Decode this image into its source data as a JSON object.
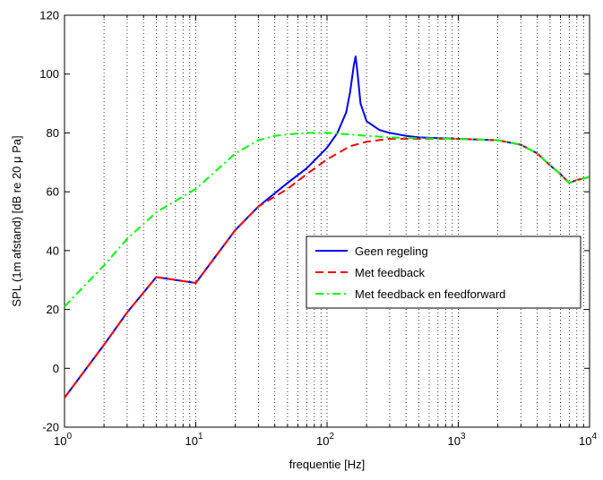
{
  "chart_data": {
    "type": "line",
    "xlabel": "frequentie [Hz]",
    "ylabel": "SPL (1m afstand) [dB re 20 μ Pa]",
    "xscale": "log",
    "xlim": [
      1,
      10000
    ],
    "ylim": [
      -20,
      120
    ],
    "grid": "x-only dotted (log minor)",
    "legend_position": "right-middle",
    "x_ticks": [
      {
        "base": "10",
        "exp": "0"
      },
      {
        "base": "10",
        "exp": "1"
      },
      {
        "base": "10",
        "exp": "2"
      },
      {
        "base": "10",
        "exp": "3"
      },
      {
        "base": "10",
        "exp": "4"
      }
    ],
    "y_ticks": [
      "-20",
      "0",
      "20",
      "40",
      "60",
      "80",
      "100",
      "120"
    ],
    "series": [
      {
        "name": "Geen regeling",
        "color": "#0000ff",
        "style": "solid",
        "x": [
          1,
          2,
          3,
          5,
          10,
          20,
          30,
          50,
          70,
          100,
          120,
          140,
          150,
          160,
          165,
          170,
          180,
          200,
          250,
          300,
          400,
          500,
          700,
          1000,
          2000,
          3000,
          4000,
          5000,
          6000,
          7000,
          8000,
          10000
        ],
        "y": [
          -10,
          8,
          19,
          31,
          29,
          47,
          55,
          63,
          68,
          75,
          80,
          87,
          94,
          103,
          106,
          101,
          90,
          84,
          81,
          80,
          79,
          78.5,
          78.2,
          78,
          77.5,
          76,
          73,
          69,
          66,
          63,
          64,
          65
        ]
      },
      {
        "name": "Met feedback",
        "color": "#ff0000",
        "style": "dashed",
        "x": [
          1,
          2,
          3,
          5,
          10,
          20,
          30,
          50,
          70,
          100,
          150,
          200,
          300,
          500,
          1000,
          2000,
          3000,
          4000,
          5000,
          6000,
          7000,
          8000,
          10000
        ],
        "y": [
          -10,
          8,
          19,
          31,
          29,
          47,
          55,
          61,
          66,
          71,
          75.5,
          77,
          78,
          78,
          78,
          77.5,
          76,
          73,
          69,
          66,
          63,
          64,
          65
        ]
      },
      {
        "name": "Met feedback en feedforward",
        "color": "#00ff00",
        "style": "dashdot",
        "x": [
          1,
          2,
          3,
          5,
          10,
          20,
          30,
          40,
          50,
          70,
          100,
          150,
          200,
          300,
          500,
          1000,
          2000,
          3000,
          4000,
          5000,
          6000,
          7000,
          8000,
          10000
        ],
        "y": [
          21,
          35,
          44,
          53,
          61,
          73,
          77.5,
          79,
          79.5,
          80,
          80,
          79.5,
          79,
          78.5,
          78.2,
          78,
          77.5,
          76,
          73,
          69,
          66,
          63,
          64,
          65
        ]
      }
    ]
  }
}
